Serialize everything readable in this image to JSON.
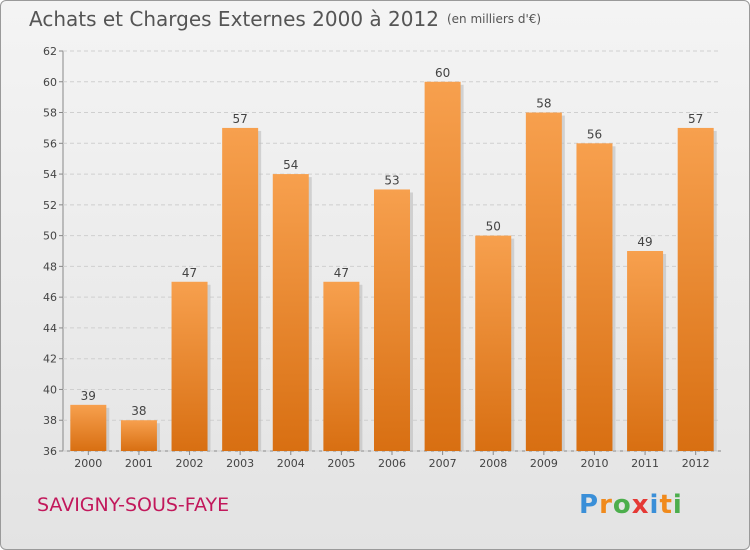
{
  "header": {
    "title": "Achats et Charges Externes 2000 à 2012",
    "unit_note": "(en milliers d'€)"
  },
  "footer": {
    "city": "SAVIGNY-SOUS-FAYE",
    "logo_letters": [
      "P",
      "r",
      "o",
      "x",
      "i",
      "t",
      "i"
    ],
    "logo_colors": [
      "#3a8fd8",
      "#f08a1c",
      "#4cae4c",
      "#e53935",
      "#3a8fd8",
      "#f08a1c",
      "#4cae4c"
    ]
  },
  "chart_data": {
    "type": "bar",
    "title": "Achats et Charges Externes 2000 à 2012",
    "subtitle": "(en milliers d'€)",
    "categories": [
      "2000",
      "2001",
      "2002",
      "2003",
      "2004",
      "2005",
      "2006",
      "2007",
      "2008",
      "2009",
      "2010",
      "2011",
      "2012"
    ],
    "values": [
      39,
      38,
      47,
      57,
      54,
      47,
      53,
      60,
      50,
      58,
      56,
      49,
      57
    ],
    "ylim": [
      36,
      62
    ],
    "yticks": [
      36,
      38,
      40,
      42,
      44,
      46,
      48,
      50,
      52,
      54,
      56,
      58,
      60,
      62
    ],
    "grid": true,
    "legend": "none",
    "bar_color": "#f0882a"
  }
}
